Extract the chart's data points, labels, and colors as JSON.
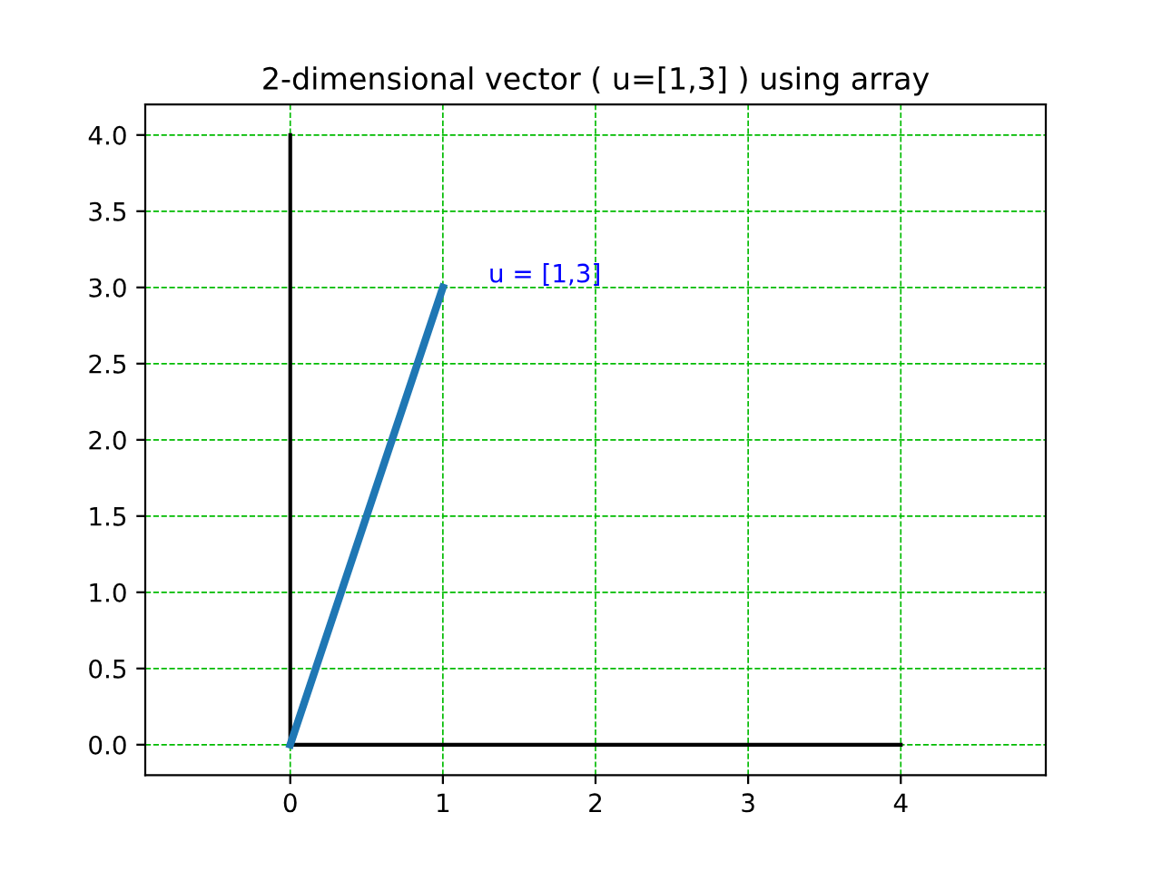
{
  "chart_data": {
    "type": "line",
    "title": "2-dimensional vector ( u=[1,3] ) using array",
    "series": [
      {
        "x": [
          0,
          1
        ],
        "values": [
          0,
          3
        ],
        "color": "#1f77b4"
      },
      {
        "x": [
          0,
          4
        ],
        "values": [
          0,
          0
        ],
        "color": "#000000"
      },
      {
        "x": [
          0,
          0
        ],
        "values": [
          0,
          4
        ],
        "color": "#000000"
      }
    ],
    "annotations": [
      "u = [1,3]"
    ],
    "xlim": [
      -0.95,
      4.95
    ],
    "ylim": [
      -0.2,
      4.2
    ],
    "xticks": [
      0,
      1,
      2,
      3,
      4
    ],
    "yticks": [
      {
        "value": 0,
        "label": "0.0"
      },
      {
        "value": 0.5,
        "label": "0.5"
      },
      {
        "value": 1,
        "label": "1.0"
      },
      {
        "value": 1.5,
        "label": "1.5"
      },
      {
        "value": 2,
        "label": "2.0"
      },
      {
        "value": 2.5,
        "label": "2.5"
      },
      {
        "value": 3,
        "label": "3.0"
      },
      {
        "value": 3.5,
        "label": "3.5"
      },
      {
        "value": 4,
        "label": "4.0"
      }
    ],
    "grid": true,
    "line_style": "solid"
  }
}
